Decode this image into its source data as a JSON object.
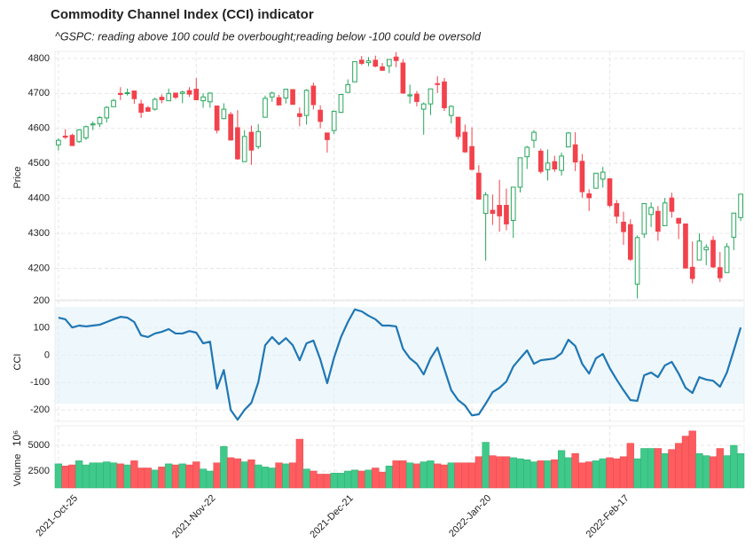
{
  "chart_data": [
    {
      "type": "candlestick",
      "title": "Commodity Channel Index (CCI) indicator",
      "subtitle": "^GSPC: reading above 100 could be overbought;reading below -100 could be oversold",
      "ylabel": "Price",
      "up_color": "#26a65b",
      "down_color": "#f2424c",
      "ylim": [
        4110,
        4820
      ],
      "yticks": [
        4200,
        4300,
        4400,
        4500,
        4600,
        4700,
        4800
      ],
      "grid": true,
      "open": [
        4553,
        4578,
        4580,
        4562,
        4573,
        4610,
        4613,
        4630,
        4662,
        4700,
        4701,
        4707,
        4670,
        4659,
        4655,
        4689,
        4679,
        4701,
        4700,
        4708,
        4712,
        4679,
        4676,
        4664,
        4628,
        4640,
        4602,
        4505,
        4589,
        4548,
        4632,
        4690,
        4688,
        4687,
        4711,
        4642,
        4637,
        4721,
        4652,
        4587,
        4594,
        4646,
        4703,
        4733,
        4795,
        4788,
        4795,
        4776,
        4779,
        4804,
        4787,
        4693,
        4698,
        4655,
        4670,
        4728,
        4733,
        4637,
        4632,
        4589,
        4548,
        4472,
        4357,
        4366,
        4380,
        4380,
        4337,
        4432,
        4519,
        4566,
        4535,
        4482,
        4505,
        4480,
        4547,
        4553,
        4506,
        4413,
        4429,
        4455,
        4456,
        4385,
        4332,
        4325,
        4155,
        4298,
        4354,
        4363,
        4322,
        4401,
        4343,
        4327,
        4203,
        4224,
        4253,
        4280,
        4202,
        4188,
        4289,
        4345
      ],
      "high": [
        4572,
        4598,
        4585,
        4598,
        4608,
        4620,
        4635,
        4664,
        4684,
        4718,
        4714,
        4708,
        4682,
        4664,
        4688,
        4697,
        4714,
        4701,
        4708,
        4718,
        4744,
        4701,
        4703,
        4665,
        4672,
        4647,
        4652,
        4595,
        4608,
        4612,
        4694,
        4705,
        4696,
        4713,
        4711,
        4660,
        4712,
        4731,
        4666,
        4588,
        4651,
        4697,
        4740,
        4791,
        4807,
        4804,
        4808,
        4787,
        4797,
        4818,
        4798,
        4725,
        4707,
        4674,
        4714,
        4749,
        4744,
        4666,
        4632,
        4611,
        4603,
        4495,
        4418,
        4411,
        4453,
        4428,
        4432,
        4517,
        4550,
        4595,
        4542,
        4540,
        4522,
        4531,
        4590,
        4589,
        4527,
        4426,
        4472,
        4490,
        4456,
        4395,
        4362,
        4340,
        4294,
        4385,
        4389,
        4378,
        4401,
        4416,
        4343,
        4328,
        4277,
        4300,
        4269,
        4292,
        4247,
        4272,
        4358,
        4412
      ],
      "low": [
        4537,
        4570,
        4551,
        4559,
        4567,
        4595,
        4604,
        4617,
        4663,
        4681,
        4694,
        4670,
        4630,
        4649,
        4651,
        4672,
        4679,
        4684,
        4672,
        4690,
        4680,
        4659,
        4659,
        4586,
        4626,
        4565,
        4510,
        4504,
        4496,
        4541,
        4632,
        4676,
        4666,
        4671,
        4667,
        4606,
        4611,
        4654,
        4600,
        4531,
        4584,
        4644,
        4703,
        4733,
        4781,
        4778,
        4775,
        4765,
        4758,
        4775,
        4699,
        4671,
        4663,
        4582,
        4638,
        4701,
        4650,
        4614,
        4568,
        4530,
        4480,
        4396,
        4222,
        4324,
        4305,
        4309,
        4287,
        4417,
        4484,
        4544,
        4471,
        4451,
        4476,
        4465,
        4547,
        4478,
        4401,
        4364,
        4429,
        4431,
        4374,
        4328,
        4267,
        4221,
        4114,
        4287,
        4318,
        4279,
        4322,
        4345,
        4284,
        4199,
        4157,
        4224,
        4209,
        4201,
        4161,
        4187,
        4252,
        4335
      ],
      "close": [
        4566,
        4575,
        4551,
        4596,
        4605,
        4613,
        4631,
        4660,
        4680,
        4697,
        4702,
        4685,
        4646,
        4649,
        4683,
        4682,
        4700,
        4689,
        4704,
        4698,
        4682,
        4690,
        4701,
        4595,
        4655,
        4567,
        4513,
        4577,
        4538,
        4591,
        4686,
        4701,
        4667,
        4712,
        4669,
        4634,
        4709,
        4668,
        4620,
        4568,
        4649,
        4697,
        4725,
        4791,
        4786,
        4793,
        4778,
        4766,
        4797,
        4794,
        4701,
        4696,
        4677,
        4670,
        4713,
        4726,
        4659,
        4663,
        4577,
        4533,
        4483,
        4398,
        4410,
        4357,
        4350,
        4327,
        4432,
        4516,
        4546,
        4589,
        4477,
        4501,
        4484,
        4521,
        4587,
        4504,
        4419,
        4402,
        4472,
        4475,
        4380,
        4349,
        4305,
        4226,
        4288,
        4385,
        4374,
        4306,
        4387,
        4363,
        4329,
        4201,
        4171,
        4278,
        4260,
        4204,
        4173,
        4262,
        4358,
        4412
      ]
    },
    {
      "type": "line",
      "ylabel": "CCI",
      "color": "#1f77b4",
      "shade_color": "#e3f1f9",
      "shade_range": [
        -177,
        177
      ],
      "ylim": [
        -242,
        200
      ],
      "yticks": [
        -200,
        -100,
        0,
        100,
        200
      ],
      "grid": true,
      "values": [
        138,
        132,
        102,
        109,
        106,
        109,
        112,
        122,
        132,
        141,
        138,
        122,
        73,
        67,
        80,
        86,
        96,
        80,
        80,
        89,
        83,
        44,
        50,
        -122,
        -54,
        -200,
        -236,
        -200,
        -174,
        -99,
        37,
        67,
        41,
        63,
        37,
        -18,
        44,
        54,
        -15,
        -102,
        -8,
        67,
        122,
        168,
        161,
        145,
        132,
        109,
        109,
        106,
        24,
        -11,
        -31,
        -70,
        -11,
        28,
        -50,
        -128,
        -164,
        -184,
        -220,
        -216,
        -177,
        -135,
        -119,
        -96,
        -41,
        -11,
        18,
        -31,
        -18,
        -15,
        -11,
        8,
        57,
        34,
        -31,
        -67,
        -11,
        5,
        -47,
        -89,
        -128,
        -164,
        -167,
        -73,
        -63,
        -80,
        -37,
        -24,
        -67,
        -119,
        -138,
        -80,
        -89,
        -93,
        -115,
        -63,
        18,
        102
      ]
    },
    {
      "type": "bar",
      "ylabel": "Volume",
      "offset_label": "10⁶",
      "up_color": "#3fc98a",
      "down_color": "#ff5c60",
      "ylim": [
        860,
        6900
      ],
      "yticks": [
        2500,
        5000
      ],
      "grid": true,
      "categories": [
        "2021-Oct-25",
        null,
        null,
        null,
        null,
        null,
        null,
        null,
        null,
        null,
        null,
        null,
        null,
        null,
        null,
        null,
        null,
        null,
        null,
        null,
        "2021-Nov-22",
        null,
        null,
        null,
        null,
        null,
        null,
        null,
        null,
        null,
        null,
        null,
        null,
        null,
        null,
        null,
        null,
        null,
        null,
        null,
        "2021-Dec-21",
        null,
        null,
        null,
        null,
        null,
        null,
        null,
        null,
        null,
        null,
        null,
        null,
        null,
        null,
        null,
        null,
        null,
        null,
        null,
        "2022-Jan-20",
        null,
        null,
        null,
        null,
        null,
        null,
        null,
        null,
        null,
        null,
        null,
        null,
        null,
        null,
        null,
        null,
        null,
        null,
        null,
        "2022-Feb-17",
        null,
        null,
        null,
        null,
        null,
        null,
        null,
        null,
        null,
        null,
        null,
        null,
        null,
        null,
        null,
        null,
        null,
        null,
        null
      ],
      "values": [
        3200,
        3000,
        3100,
        3500,
        3100,
        3300,
        3300,
        3400,
        3300,
        3200,
        3100,
        3500,
        2800,
        2800,
        2600,
        2900,
        3200,
        3100,
        3200,
        3100,
        3400,
        2700,
        2500,
        3300,
        4900,
        3800,
        3700,
        3400,
        3600,
        3100,
        2900,
        2800,
        3300,
        3200,
        3300,
        5600,
        2700,
        2500,
        2200,
        2200,
        2300,
        2300,
        2500,
        2600,
        2500,
        2600,
        2800,
        2400,
        3000,
        3500,
        3500,
        3300,
        3200,
        3400,
        3500,
        3200,
        3100,
        3300,
        3300,
        3300,
        3300,
        3900,
        5300,
        4000,
        3900,
        3900,
        3800,
        3700,
        3600,
        3400,
        3500,
        3500,
        3600,
        4500,
        3800,
        4200,
        3300,
        3400,
        3500,
        3700,
        3800,
        3700,
        3900,
        5200,
        3700,
        4700,
        4700,
        4700,
        4200,
        4600,
        5200,
        5900,
        6400,
        4200,
        4000,
        3900,
        4700,
        4000,
        5000,
        4200
      ]
    }
  ]
}
